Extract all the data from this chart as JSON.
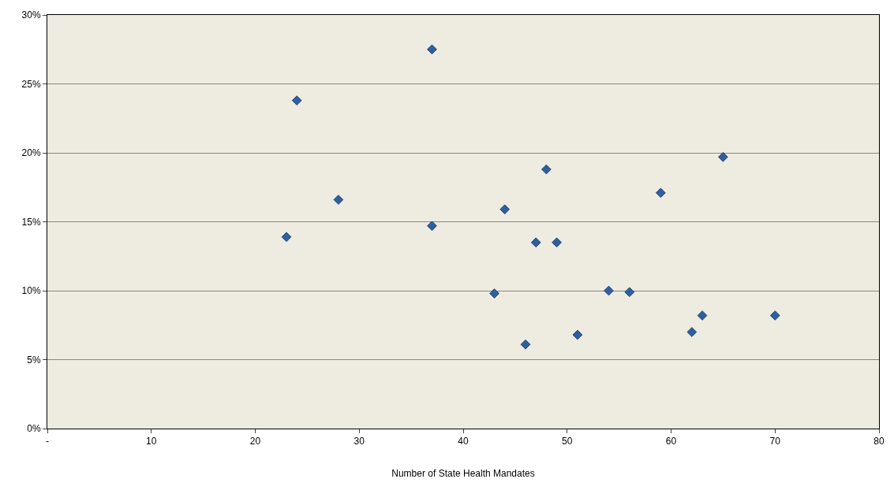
{
  "chart_data": {
    "type": "scatter",
    "xlabel": "Number of State Health Mandates",
    "x": [
      23,
      24,
      28,
      37,
      37,
      43,
      44,
      46,
      47,
      48,
      49,
      51,
      54,
      56,
      59,
      62,
      63,
      65,
      70
    ],
    "series": [
      {
        "color": "#2e5fa0",
        "values": [
          13.9,
          23.8,
          16.6,
          27.5,
          14.7,
          9.8,
          15.9,
          6.1,
          13.5,
          18.8,
          13.5,
          6.8,
          10.0,
          9.9,
          17.1,
          7.0,
          8.2,
          19.7,
          8.2
        ]
      }
    ],
    "xlim": [
      0,
      80
    ],
    "xticks": [
      {
        "value": 0,
        "label": "-"
      },
      10,
      20,
      30,
      40,
      50,
      60,
      70,
      80
    ],
    "ylim": [
      0,
      30
    ],
    "yticks": [
      {
        "value": 0,
        "label": "0%"
      },
      {
        "value": 5,
        "label": "5%"
      },
      {
        "value": 10,
        "label": "10%"
      },
      {
        "value": 15,
        "label": "15%"
      },
      {
        "value": 20,
        "label": "20%"
      },
      {
        "value": 25,
        "label": "25%"
      },
      {
        "value": 30,
        "label": "30%"
      }
    ],
    "grid": "y",
    "marker": "diamond"
  }
}
